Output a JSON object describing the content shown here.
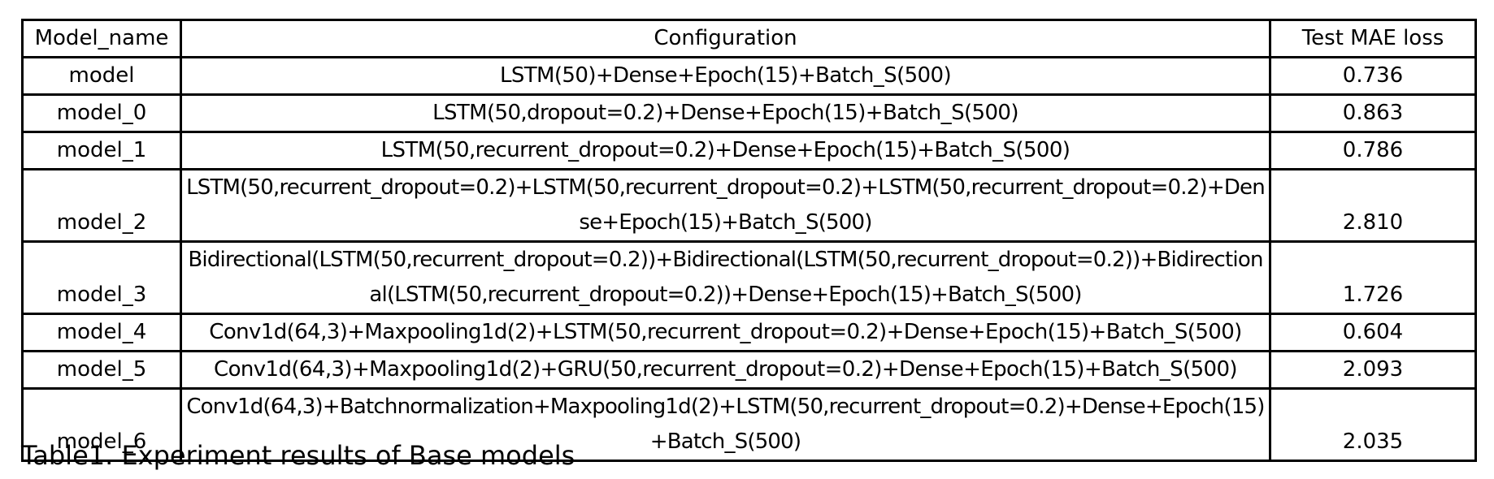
{
  "table": {
    "headers": {
      "model_name": "Model_name",
      "configuration": "Configuration",
      "test_mae_loss": "Test MAE loss"
    },
    "rows": [
      {
        "model_name": "model",
        "configuration": "LSTM(50)+Dense+Epoch(15)+Batch_S(500)",
        "test_mae_loss": "0.736"
      },
      {
        "model_name": "model_0",
        "configuration": "LSTM(50,dropout=0.2)+Dense+Epoch(15)+Batch_S(500)",
        "test_mae_loss": "0.863"
      },
      {
        "model_name": "model_1",
        "configuration": "LSTM(50,recurrent_dropout=0.2)+Dense+Epoch(15)+Batch_S(500)",
        "test_mae_loss": "0.786"
      },
      {
        "model_name": "model_2",
        "configuration": "LSTM(50,recurrent_dropout=0.2)+LSTM(50,recurrent_dropout=0.2)+LSTM(50,recurrent_dropout=0.2)+Dense+Epoch(15)+Batch_S(500)",
        "test_mae_loss": "2.810"
      },
      {
        "model_name": "model_3",
        "configuration": "Bidirectional(LSTM(50,recurrent_dropout=0.2))+Bidirectional(LSTM(50,recurrent_dropout=0.2))+Bidirectional(LSTM(50,recurrent_dropout=0.2))+Dense+Epoch(15)+Batch_S(500)",
        "test_mae_loss": "1.726"
      },
      {
        "model_name": "model_4",
        "configuration": "Conv1d(64,3)+Maxpooling1d(2)+LSTM(50,recurrent_dropout=0.2)+Dense+Epoch(15)+Batch_S(500)",
        "test_mae_loss": "0.604"
      },
      {
        "model_name": "model_5",
        "configuration": "Conv1d(64,3)+Maxpooling1d(2)+GRU(50,recurrent_dropout=0.2)+Dense+Epoch(15)+Batch_S(500)",
        "test_mae_loss": "2.093"
      },
      {
        "model_name": "model_6",
        "configuration": "Conv1d(64,3)+Batchnormalization+Maxpooling1d(2)+LSTM(50,recurrent_dropout=0.2)+Dense+Epoch(15)+Batch_S(500)",
        "test_mae_loss": "2.035"
      }
    ]
  },
  "caption": "Table1. Experiment results of Base models"
}
